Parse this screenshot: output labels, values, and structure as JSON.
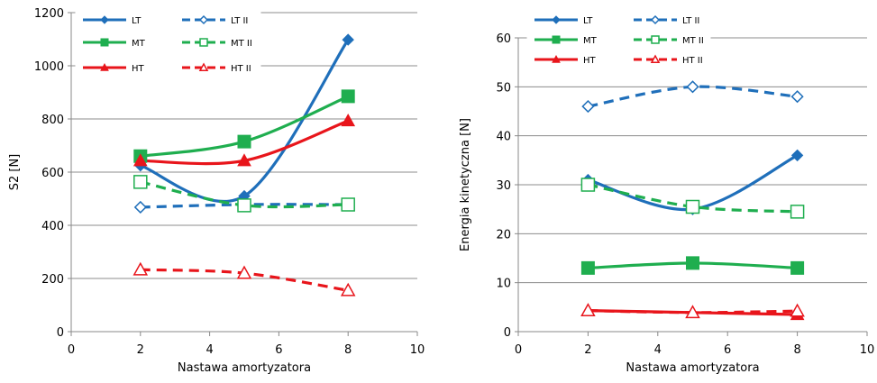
{
  "chart_data": [
    {
      "type": "line",
      "title": "",
      "xlabel": "Nastawa amortyzatora",
      "ylabel": "S2 [N]",
      "xlim": [
        0,
        10
      ],
      "ylim": [
        0,
        1200
      ],
      "xticks": [
        "0",
        "2",
        "4",
        "6",
        "8",
        "10"
      ],
      "yticks": [
        "0",
        "200",
        "400",
        "600",
        "800",
        "1000",
        "1200"
      ],
      "grid": "horizontal",
      "legend_position": "top-left",
      "x": [
        2,
        5,
        8
      ],
      "series": [
        {
          "name": "LT",
          "values": [
            625,
            510,
            1098
          ],
          "color": "#1f6fba",
          "dash": "solid",
          "marker": "diamond"
        },
        {
          "name": "LT II",
          "values": [
            468,
            478,
            478
          ],
          "color": "#1f6fba",
          "dash": "dashed",
          "marker": "diamond-open"
        },
        {
          "name": "MT",
          "values": [
            660,
            715,
            885
          ],
          "color": "#1fae4f",
          "dash": "solid",
          "marker": "square"
        },
        {
          "name": "MT II",
          "values": [
            563,
            475,
            478
          ],
          "color": "#1fae4f",
          "dash": "dashed",
          "marker": "square-open"
        },
        {
          "name": "HT",
          "values": [
            643,
            643,
            793
          ],
          "color": "#e8151b",
          "dash": "solid",
          "marker": "triangle"
        },
        {
          "name": "HT II",
          "values": [
            233,
            220,
            155
          ],
          "color": "#e8151b",
          "dash": "dashed",
          "marker": "triangle-open"
        }
      ]
    },
    {
      "type": "line",
      "title": "",
      "xlabel": "Nastawa amortyzatora",
      "ylabel": "Energia kinetyczna [N]",
      "xlim": [
        0,
        10
      ],
      "ylim": [
        0,
        60
      ],
      "xticks": [
        "0",
        "2",
        "4",
        "6",
        "8",
        "10"
      ],
      "yticks": [
        "0",
        "10",
        "20",
        "30",
        "40",
        "50",
        "60"
      ],
      "grid": "horizontal",
      "legend_position": "top-left",
      "x": [
        2,
        5,
        8
      ],
      "series": [
        {
          "name": "LT",
          "values": [
            31,
            25,
            36
          ],
          "color": "#1f6fba",
          "dash": "solid",
          "marker": "diamond"
        },
        {
          "name": "LT II",
          "values": [
            46,
            50,
            48
          ],
          "color": "#1f6fba",
          "dash": "dashed",
          "marker": "diamond-open"
        },
        {
          "name": "MT",
          "values": [
            13,
            14,
            13
          ],
          "color": "#1fae4f",
          "dash": "solid",
          "marker": "square"
        },
        {
          "name": "MT II",
          "values": [
            30,
            25.5,
            24.5
          ],
          "color": "#1fae4f",
          "dash": "dashed",
          "marker": "square-open"
        },
        {
          "name": "HT",
          "values": [
            4.3,
            3.9,
            3.5
          ],
          "color": "#e8151b",
          "dash": "solid",
          "marker": "triangle"
        },
        {
          "name": "HT II",
          "values": [
            4.3,
            3.9,
            4.2
          ],
          "color": "#e8151b",
          "dash": "dashed",
          "marker": "triangle-open"
        }
      ]
    }
  ]
}
